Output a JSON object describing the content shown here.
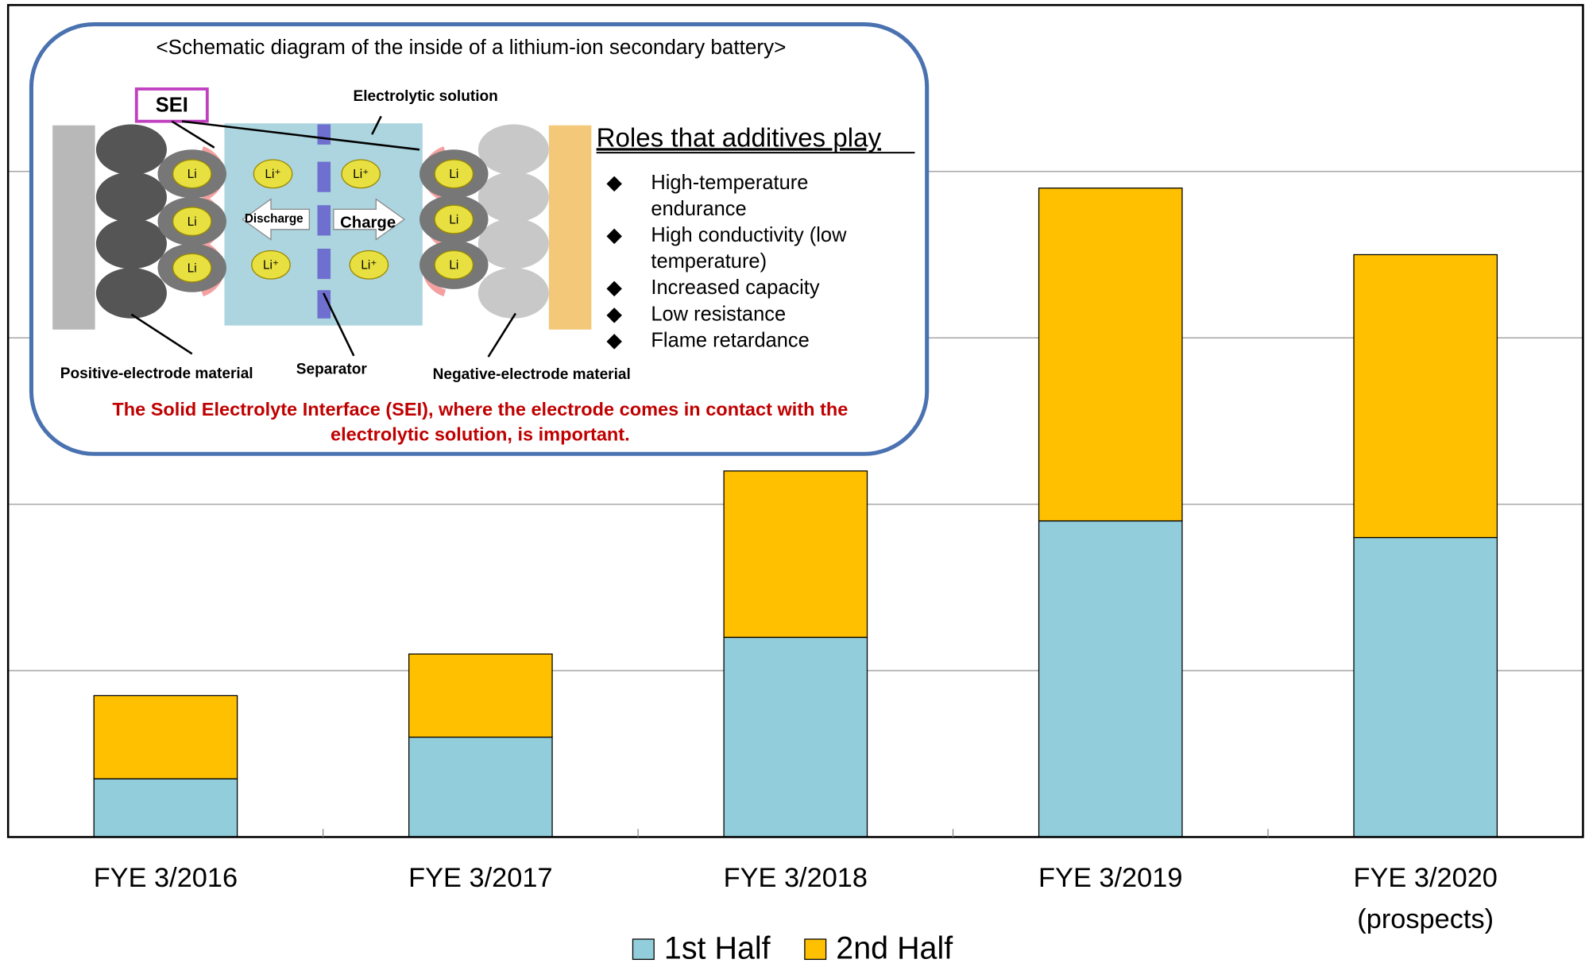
{
  "chart_data": {
    "type": "bar",
    "stacked": true,
    "categories": [
      "FYE 3/2016",
      "FYE 3/2017",
      "FYE 3/2018",
      "FYE 3/2019",
      "FYE 3/2020\n(prospects)"
    ],
    "series": [
      {
        "name": "1st Half",
        "color": "#92cddc",
        "values": [
          0.35,
          0.6,
          1.2,
          1.9,
          1.8
        ]
      },
      {
        "name": "2nd Half",
        "color": "#ffc000",
        "values": [
          0.5,
          0.5,
          1.0,
          2.0,
          1.7
        ]
      }
    ],
    "ylim": [
      0,
      5
    ],
    "yticks": [
      0,
      1,
      2,
      3,
      4,
      5
    ],
    "grid": true,
    "legend": "bottom"
  },
  "inset": {
    "title": "<Schematic diagram of the inside of a lithium-ion secondary battery>",
    "sei": "SEI",
    "electrolyte": "Electrolytic solution",
    "discharge": "Discharge",
    "charge": "Charge",
    "li": "Li",
    "li_ion": "Li⁺",
    "positive": "Positive-electrode material",
    "separator": "Separator",
    "negative": "Negative-electrode material",
    "roles_title": "Roles that additives play",
    "roles": [
      "High-temperature\nendurance",
      "High conductivity (low\ntemperature)",
      "Increased capacity",
      "Low resistance",
      "Flame retardance"
    ],
    "note": "The Solid Electrolyte Interface (SEI), where the electrode comes in contact with the electrolytic solution, is important."
  }
}
